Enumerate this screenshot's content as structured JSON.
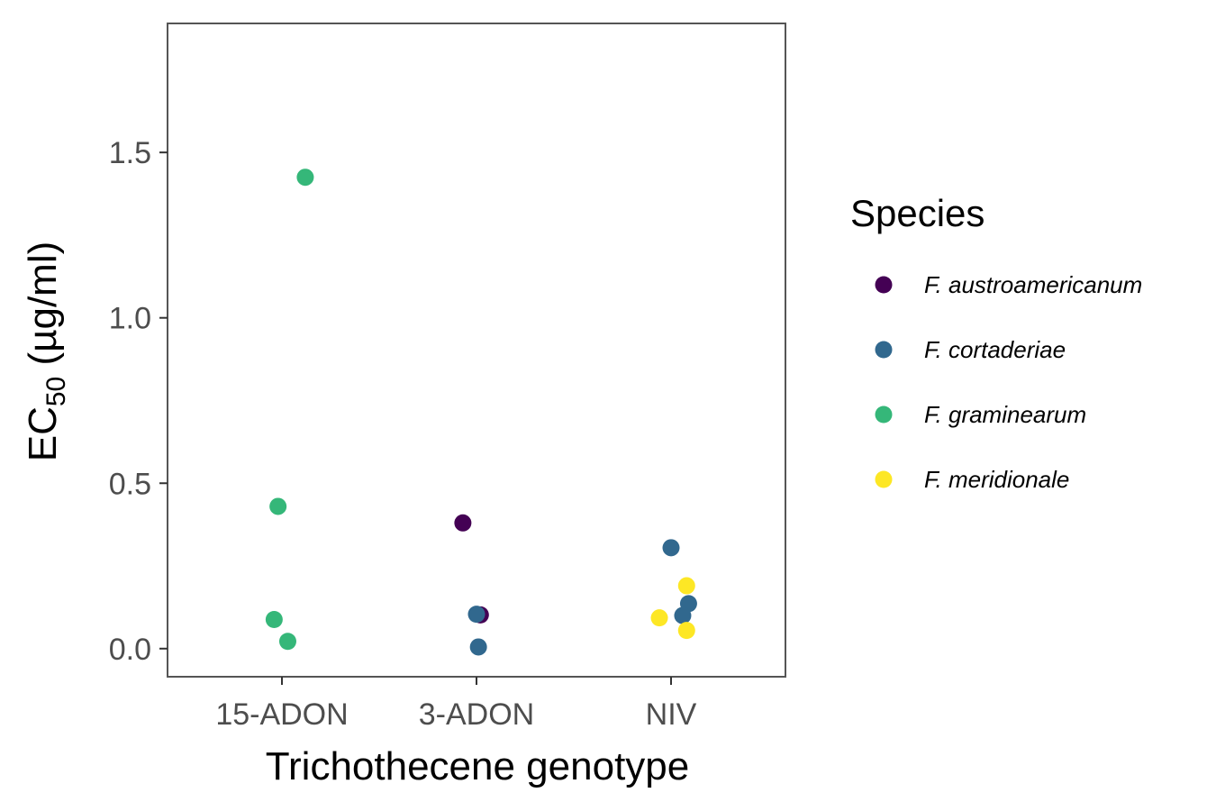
{
  "chart_data": {
    "type": "scatter",
    "xlabel": "Trichothecene genotype",
    "ylabel": {
      "main": "EC",
      "sub": "50",
      "unit": " (µg/ml)"
    },
    "categories": [
      "15-ADON",
      "3-ADON",
      "NIV"
    ],
    "ylim": [
      -0.085,
      1.89
    ],
    "yticks": [
      0.0,
      0.5,
      1.0,
      1.5
    ],
    "ytick_labels": [
      "0.0",
      "0.5",
      "1.0",
      "1.5"
    ],
    "grid": false,
    "legend": {
      "title": "Species",
      "position": "right",
      "entries": [
        {
          "label": "F. austroamericanum",
          "color": "#440154"
        },
        {
          "label": "F. cortaderiae",
          "color": "#31688e"
        },
        {
          "label": "F. graminearum",
          "color": "#35b779"
        },
        {
          "label": "F. meridionale",
          "color": "#fde725"
        }
      ]
    },
    "series": [
      {
        "name": "F. austroamericanum",
        "color": "#440154",
        "points": [
          {
            "x": "3-ADON",
            "jitter": -0.07,
            "y": 0.38
          },
          {
            "x": "3-ADON",
            "jitter": 0.02,
            "y": 0.102
          }
        ]
      },
      {
        "name": "F. cortaderiae",
        "color": "#31688e",
        "points": [
          {
            "x": "3-ADON",
            "jitter": 0.0,
            "y": 0.104
          },
          {
            "x": "3-ADON",
            "jitter": 0.01,
            "y": 0.005
          },
          {
            "x": "NIV",
            "jitter": 0.0,
            "y": 0.305
          },
          {
            "x": "NIV",
            "jitter": 0.09,
            "y": 0.136
          },
          {
            "x": "NIV",
            "jitter": 0.06,
            "y": 0.1
          }
        ]
      },
      {
        "name": "F. graminearum",
        "color": "#35b779",
        "points": [
          {
            "x": "15-ADON",
            "jitter": 0.12,
            "y": 1.425
          },
          {
            "x": "15-ADON",
            "jitter": -0.02,
            "y": 0.43
          },
          {
            "x": "15-ADON",
            "jitter": -0.04,
            "y": 0.088
          },
          {
            "x": "15-ADON",
            "jitter": 0.03,
            "y": 0.022
          }
        ]
      },
      {
        "name": "F. meridionale",
        "color": "#fde725",
        "points": [
          {
            "x": "NIV",
            "jitter": 0.08,
            "y": 0.19
          },
          {
            "x": "NIV",
            "jitter": -0.06,
            "y": 0.093
          },
          {
            "x": "NIV",
            "jitter": 0.08,
            "y": 0.055
          }
        ]
      }
    ]
  }
}
